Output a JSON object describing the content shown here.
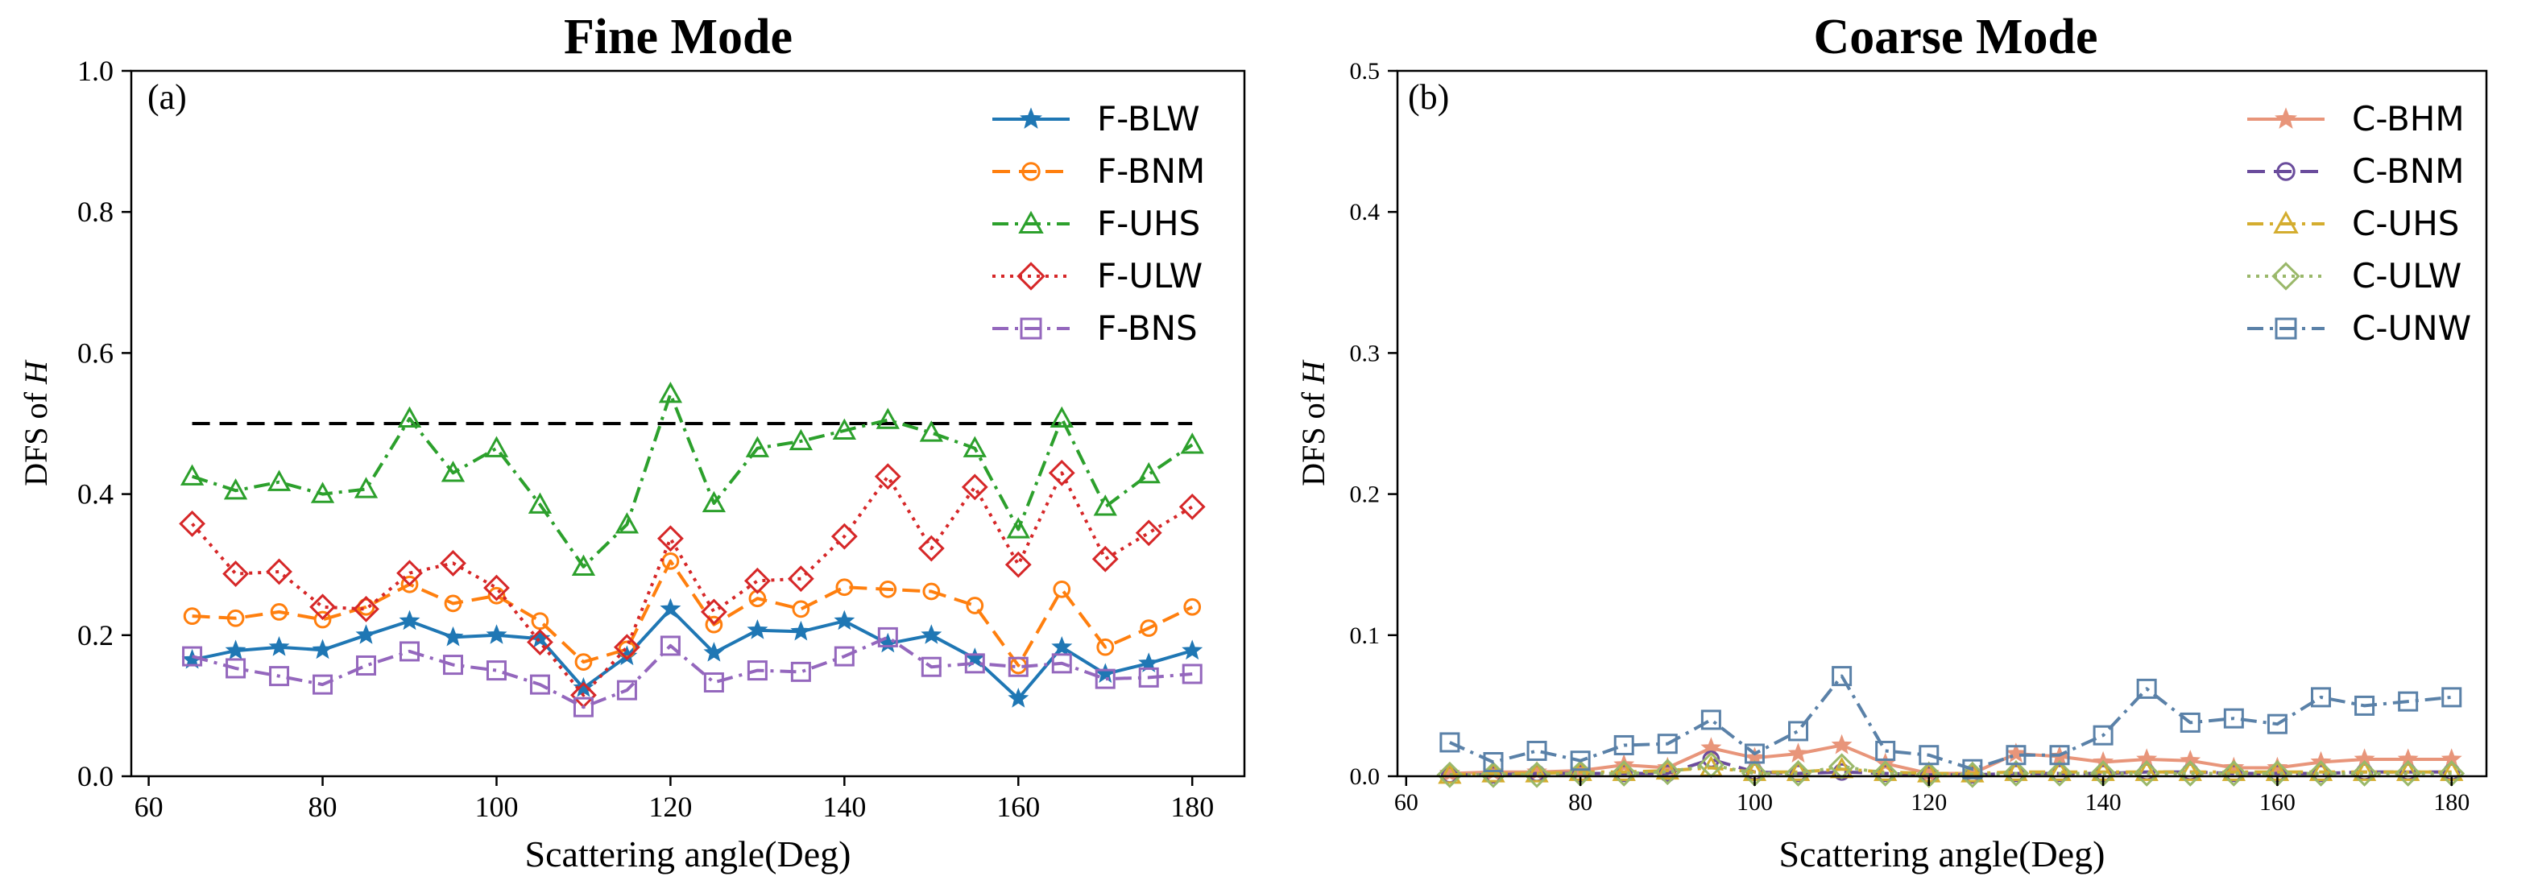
{
  "chart_data": [
    {
      "type": "line",
      "panel_label": "(a)",
      "title": "Fine Mode",
      "xlabel": "Scattering angle(Deg)",
      "ylabel_prefix": "DFS of ",
      "ylabel_var": "H",
      "xlim": [
        58,
        186
      ],
      "ylim": [
        0,
        1.0
      ],
      "xticks": [
        60,
        80,
        100,
        120,
        140,
        160,
        180
      ],
      "yticks": [
        "0.0",
        "0.2",
        "0.4",
        "0.6",
        "0.8",
        "1.0"
      ],
      "ytick_values": [
        0,
        0.2,
        0.4,
        0.6,
        0.8,
        1.0
      ],
      "reference_line": {
        "y": 0.5,
        "x": [
          65,
          180
        ],
        "style": "dashed",
        "color": "#000000"
      },
      "legend_position": "top-right",
      "x": [
        65,
        70,
        75,
        80,
        85,
        90,
        95,
        100,
        105,
        110,
        115,
        120,
        125,
        130,
        135,
        140,
        145,
        150,
        155,
        160,
        165,
        170,
        175,
        180
      ],
      "series": [
        {
          "name": "F-BLW",
          "color": "#1f77b4",
          "marker": "star",
          "dash": "solid",
          "values": [
            0.165,
            0.178,
            0.183,
            0.179,
            0.2,
            0.22,
            0.197,
            0.2,
            0.195,
            0.125,
            0.17,
            0.237,
            0.175,
            0.207,
            0.205,
            0.22,
            0.188,
            0.2,
            0.167,
            0.11,
            0.183,
            0.145,
            0.16,
            0.178
          ]
        },
        {
          "name": "F-BNM",
          "color": "#ff7f0e",
          "marker": "circle",
          "dash": "dashed",
          "values": [
            0.227,
            0.224,
            0.233,
            0.222,
            0.24,
            0.272,
            0.245,
            0.256,
            0.22,
            0.162,
            0.18,
            0.305,
            0.215,
            0.252,
            0.237,
            0.268,
            0.265,
            0.262,
            0.242,
            0.157,
            0.265,
            0.183,
            0.21,
            0.24
          ]
        },
        {
          "name": "F-UHS",
          "color": "#2ca02c",
          "marker": "triangle",
          "dash": "dashdot",
          "values": [
            0.425,
            0.405,
            0.417,
            0.4,
            0.407,
            0.507,
            0.43,
            0.465,
            0.385,
            0.297,
            0.357,
            0.542,
            0.387,
            0.465,
            0.475,
            0.49,
            0.505,
            0.487,
            0.465,
            0.35,
            0.507,
            0.382,
            0.428,
            0.47
          ]
        },
        {
          "name": "F-ULW",
          "color": "#d62728",
          "marker": "diamond",
          "dash": "dotted",
          "values": [
            0.358,
            0.287,
            0.29,
            0.24,
            0.237,
            0.288,
            0.302,
            0.267,
            0.19,
            0.115,
            0.183,
            0.337,
            0.233,
            0.277,
            0.28,
            0.34,
            0.425,
            0.323,
            0.41,
            0.3,
            0.43,
            0.308,
            0.345,
            0.382
          ]
        },
        {
          "name": "F-BNS",
          "color": "#9467bd",
          "marker": "square",
          "dash": "dashdot",
          "values": [
            0.17,
            0.153,
            0.142,
            0.13,
            0.157,
            0.177,
            0.158,
            0.15,
            0.13,
            0.098,
            0.122,
            0.185,
            0.133,
            0.15,
            0.148,
            0.17,
            0.197,
            0.155,
            0.16,
            0.155,
            0.16,
            0.138,
            0.14,
            0.145
          ]
        }
      ]
    },
    {
      "type": "line",
      "panel_label": "(b)",
      "title": "Coarse Mode",
      "xlabel": "Scattering angle(Deg)",
      "ylabel_prefix": "DFS of ",
      "ylabel_var": "H",
      "xlim": [
        59,
        184
      ],
      "ylim": [
        0,
        0.5
      ],
      "xticks": [
        60,
        80,
        100,
        120,
        140,
        160,
        180
      ],
      "yticks": [
        "0.0",
        "0.1",
        "0.2",
        "0.3",
        "0.4",
        "0.5"
      ],
      "ytick_values": [
        0,
        0.1,
        0.2,
        0.3,
        0.4,
        0.5
      ],
      "legend_position": "top-right",
      "x": [
        65,
        70,
        75,
        80,
        85,
        90,
        95,
        100,
        105,
        110,
        115,
        120,
        125,
        130,
        135,
        140,
        145,
        150,
        155,
        160,
        165,
        170,
        175,
        180
      ],
      "series": [
        {
          "name": "C-BHM",
          "color": "#e8957a",
          "marker": "star",
          "dash": "solid",
          "values": [
            0.002,
            0.003,
            0.003,
            0.004,
            0.008,
            0.006,
            0.02,
            0.013,
            0.016,
            0.022,
            0.009,
            0.002,
            0.002,
            0.016,
            0.014,
            0.01,
            0.012,
            0.011,
            0.006,
            0.006,
            0.01,
            0.012,
            0.012,
            0.012
          ]
        },
        {
          "name": "C-BNM",
          "color": "#6a4c9c",
          "marker": "circle",
          "dash": "dashed",
          "values": [
            0.001,
            0.001,
            0.002,
            0.002,
            0.002,
            0.002,
            0.012,
            0.003,
            0.002,
            0.003,
            0.002,
            0.001,
            0.001,
            0.002,
            0.002,
            0.002,
            0.003,
            0.003,
            0.002,
            0.002,
            0.002,
            0.003,
            0.003,
            0.003
          ]
        },
        {
          "name": "C-UHS",
          "color": "#d4ad2f",
          "marker": "triangle",
          "dash": "dashdot",
          "values": [
            0.001,
            0.002,
            0.002,
            0.003,
            0.003,
            0.004,
            0.006,
            0.003,
            0.003,
            0.005,
            0.003,
            0.002,
            0.002,
            0.003,
            0.003,
            0.003,
            0.003,
            0.003,
            0.003,
            0.003,
            0.003,
            0.003,
            0.003,
            0.003
          ]
        },
        {
          "name": "C-ULW",
          "color": "#9ab86a",
          "marker": "diamond",
          "dash": "dotted",
          "values": [
            0.001,
            0.001,
            0.001,
            0.002,
            0.002,
            0.003,
            0.008,
            0.002,
            0.002,
            0.007,
            0.002,
            0.001,
            0.001,
            0.002,
            0.002,
            0.002,
            0.002,
            0.002,
            0.002,
            0.002,
            0.002,
            0.002,
            0.002,
            0.002
          ]
        },
        {
          "name": "C-UNW",
          "color": "#5a81a8",
          "marker": "square",
          "dash": "dashdot",
          "values": [
            0.024,
            0.01,
            0.018,
            0.011,
            0.022,
            0.023,
            0.04,
            0.016,
            0.032,
            0.071,
            0.018,
            0.015,
            0.005,
            0.015,
            0.015,
            0.029,
            0.062,
            0.038,
            0.041,
            0.037,
            0.056,
            0.05,
            0.053,
            0.056
          ]
        }
      ]
    }
  ]
}
